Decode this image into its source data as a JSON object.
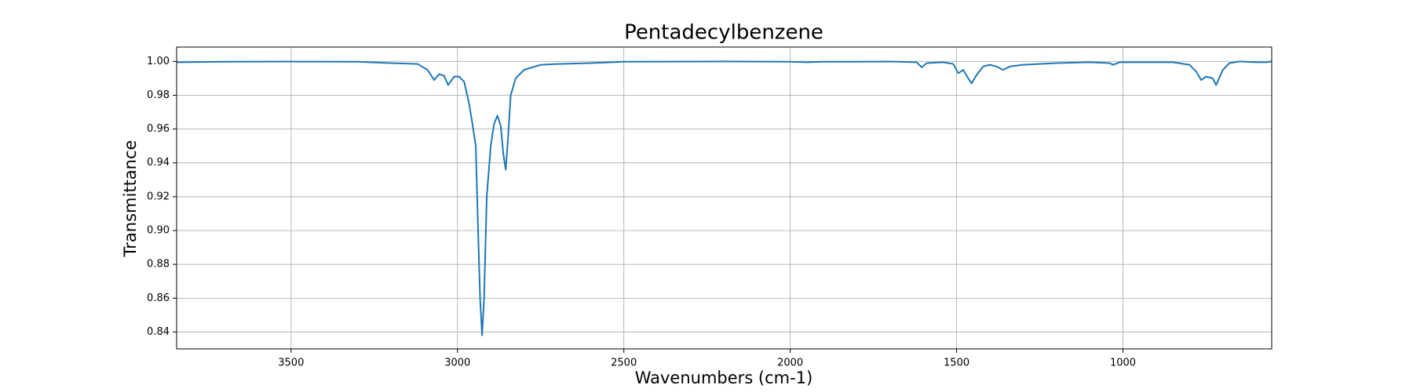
{
  "chart_data": {
    "type": "line",
    "title": "Pentadecylbenzene",
    "x_label": "Wavenumbers (cm-1)",
    "y_label": "Transmittance",
    "color": "#1f77b4",
    "grid": true,
    "xlim": [
      3844,
      553
    ],
    "ylim": [
      0.83,
      1.0085
    ],
    "xticks": [
      3500,
      3000,
      2500,
      2000,
      1500,
      1000
    ],
    "yticks": [
      0.84,
      0.86,
      0.88,
      {
        "value": 0.9,
        "label": "0.90"
      },
      0.92,
      0.94,
      0.96,
      0.98,
      {
        "value": 1,
        "label": "1.00"
      }
    ],
    "x": [
      3844,
      3700,
      3500,
      3300,
      3200,
      3120,
      3090,
      3070,
      3055,
      3040,
      3028,
      3010,
      2995,
      2980,
      2965,
      2955,
      2945,
      2938,
      2932,
      2926,
      2920,
      2912,
      2900,
      2890,
      2880,
      2870,
      2862,
      2855,
      2848,
      2840,
      2825,
      2800,
      2750,
      2700,
      2600,
      2500,
      2200,
      2000,
      1950,
      1900,
      1800,
      1700,
      1620,
      1605,
      1590,
      1540,
      1510,
      1495,
      1480,
      1465,
      1455,
      1440,
      1420,
      1400,
      1380,
      1360,
      1340,
      1300,
      1200,
      1100,
      1040,
      1030,
      1010,
      950,
      850,
      800,
      780,
      765,
      750,
      730,
      720,
      700,
      680,
      650,
      600,
      570,
      553
    ],
    "values": [
      0.9995,
      0.9998,
      0.9999,
      0.9998,
      0.999,
      0.9985,
      0.995,
      0.989,
      0.9925,
      0.9915,
      0.986,
      0.991,
      0.991,
      0.988,
      0.975,
      0.963,
      0.95,
      0.9,
      0.86,
      0.838,
      0.86,
      0.92,
      0.95,
      0.963,
      0.968,
      0.962,
      0.945,
      0.936,
      0.955,
      0.98,
      0.99,
      0.995,
      0.998,
      0.9985,
      0.999,
      0.9998,
      1.0,
      0.9998,
      0.9995,
      0.9998,
      0.9998,
      0.9999,
      0.9995,
      0.9965,
      0.999,
      0.9995,
      0.9985,
      0.993,
      0.995,
      0.99,
      0.987,
      0.992,
      0.997,
      0.998,
      0.997,
      0.995,
      0.997,
      0.998,
      0.999,
      0.9995,
      0.999,
      0.998,
      0.9995,
      0.9995,
      0.9995,
      0.998,
      0.994,
      0.989,
      0.991,
      0.99,
      0.986,
      0.995,
      0.999,
      1.0,
      0.9995,
      0.9995,
      1.0
    ]
  }
}
